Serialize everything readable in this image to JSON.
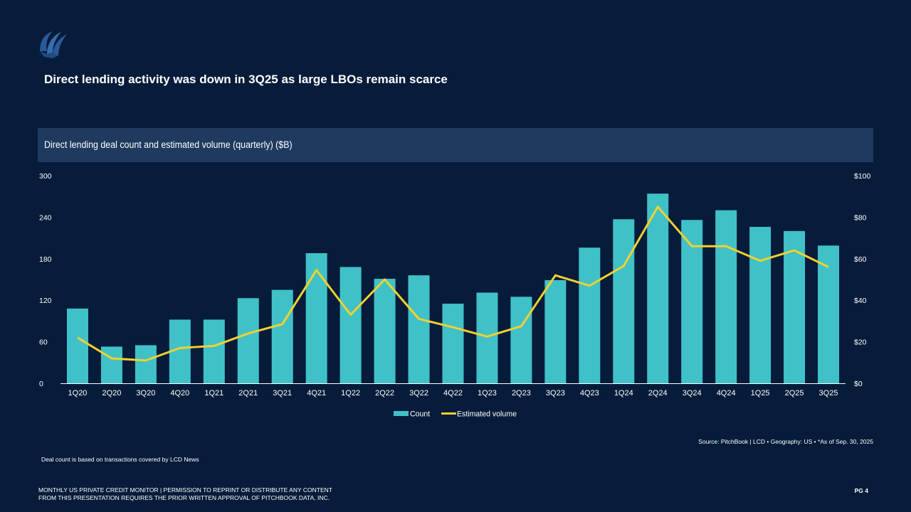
{
  "header": {
    "logo": "pitchbook-sail-logo",
    "title": "Direct lending activity was down in 3Q25 as large LBOs remain scarce"
  },
  "chart_data": {
    "type": "bar",
    "title": "Direct lending deal count and estimated volume (quarterly) ($B)",
    "categories": [
      "1Q20",
      "2Q20",
      "3Q20",
      "4Q20",
      "1Q21",
      "2Q21",
      "3Q21",
      "4Q21",
      "1Q22",
      "2Q22",
      "3Q22",
      "4Q22",
      "1Q23",
      "2Q23",
      "3Q23",
      "4Q23",
      "1Q24",
      "2Q24",
      "3Q24",
      "4Q24",
      "1Q25",
      "2Q25",
      "3Q25"
    ],
    "series": [
      {
        "name": "Count",
        "type": "bar",
        "axis": "left",
        "color": "#40c1c8",
        "values": [
          108,
          53,
          55,
          92,
          92,
          123,
          135,
          188,
          168,
          151,
          156,
          115,
          131,
          125,
          149,
          196,
          237,
          274,
          236,
          250,
          226,
          220,
          199
        ]
      },
      {
        "name": "Estimated volume",
        "type": "line",
        "axis": "right",
        "color": "#f2d12e",
        "values": [
          22,
          12,
          11,
          17,
          18,
          24,
          28.5,
          54.5,
          33,
          50,
          31,
          27,
          22.5,
          27.5,
          52,
          47,
          56.5,
          85,
          66,
          66,
          59,
          64,
          56
        ]
      }
    ],
    "left_axis": {
      "ylim": [
        0,
        300
      ],
      "ticks": [
        0,
        60,
        120,
        180,
        240,
        300
      ],
      "tick_labels": [
        "0",
        "60",
        "120",
        "180",
        "240",
        "300"
      ]
    },
    "right_axis": {
      "ylim": [
        0,
        100
      ],
      "ticks": [
        0,
        20,
        40,
        60,
        80,
        100
      ],
      "tick_labels": [
        "$0",
        "$20",
        "$40",
        "$60",
        "$80",
        "$100"
      ]
    },
    "xlabel": "",
    "ylabel": "",
    "grid": false,
    "legend": {
      "position": "bottom-center",
      "entries": [
        "Count",
        "Estimated volume"
      ]
    }
  },
  "source": "Source: PitchBook | LCD  •  Geography: US  •  *As of Sep. 30, 2025",
  "note": "Deal count is based on transactions covered by LCD News",
  "footer": {
    "line1": "MONTHLY US PRIVATE CREDIT MONITOR | PERMISSION TO REPRINT OR DISTRIBUTE ANY CONTENT",
    "line2": "FROM THIS PRESENTATION REQUIRES THE PRIOR WRITTEN APPROVAL OF PITCHBOOK DATA, INC.",
    "page": "PG 4"
  }
}
